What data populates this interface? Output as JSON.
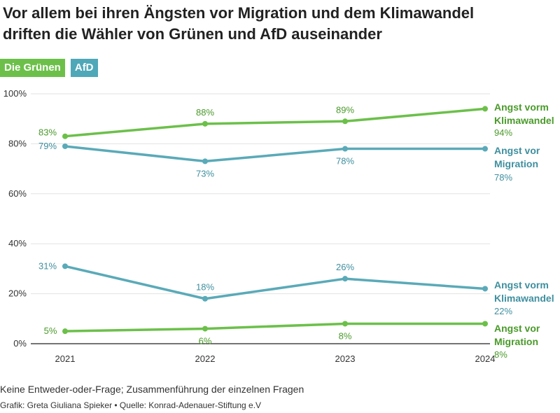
{
  "title_line1": "Vor allem bei ihren Ängsten vor Migration und dem Klimawandel",
  "title_line2": "driften die Wähler von Grünen und AfD auseinander",
  "legend": [
    {
      "label": "Die Grünen",
      "color": "#6cc04a"
    },
    {
      "label": "AfD",
      "color": "#4fa8b8"
    }
  ],
  "colors": {
    "green": "#6cc04a",
    "green_text": "#4a9a2a",
    "teal": "#5aaab8",
    "teal_text": "#3f8f9f"
  },
  "footer": {
    "note": "Keine Entweder-oder-Frage; Zusammenführung der einzelnen Fragen",
    "credit": "Grafik: Greta Giuliana Spieker • Quelle: Konrad-Adenauer-Stiftung e.V"
  },
  "chart_data": {
    "type": "line",
    "x": [
      "2021",
      "2022",
      "2023",
      "2024"
    ],
    "ylim": [
      0,
      100
    ],
    "yticks": [
      "0%",
      "20%",
      "40%",
      "60%",
      "80%",
      "100%"
    ],
    "series": [
      {
        "party": "Die Grünen",
        "label_lines": [
          "Angst vorm",
          "Klimawandel"
        ],
        "values": [
          83,
          88,
          89,
          94
        ],
        "labels": [
          "83%",
          "88%",
          "89%",
          "94%"
        ],
        "color": "#6cc04a",
        "text_color": "#4a9a2a"
      },
      {
        "party": "AfD",
        "label_lines": [
          "Angst vor",
          "Migration"
        ],
        "values": [
          79,
          73,
          78,
          78
        ],
        "labels": [
          "79%",
          "73%",
          "78%",
          "78%"
        ],
        "color": "#5aaab8",
        "text_color": "#3f8f9f"
      },
      {
        "party": "AfD",
        "label_lines": [
          "Angst vorm",
          "Klimawandel"
        ],
        "values": [
          31,
          18,
          26,
          22
        ],
        "labels": [
          "31%",
          "18%",
          "26%",
          "22%"
        ],
        "color": "#5aaab8",
        "text_color": "#3f8f9f"
      },
      {
        "party": "Die Grünen",
        "label_lines": [
          "Angst vor",
          "Migration"
        ],
        "values": [
          5,
          6,
          8,
          8
        ],
        "labels": [
          "5%",
          "6%",
          "8%",
          "8%"
        ],
        "color": "#6cc04a",
        "text_color": "#4a9a2a"
      }
    ]
  }
}
